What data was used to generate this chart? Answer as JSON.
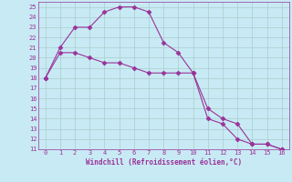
{
  "xlabel": "Windchill (Refroidissement éolien,°C)",
  "line1_x": [
    0,
    1,
    2,
    3,
    4,
    5,
    6,
    7,
    8,
    9,
    10,
    11,
    12,
    13,
    14,
    15,
    16
  ],
  "line1_y": [
    18,
    21,
    23,
    23,
    24.5,
    25,
    25,
    24.5,
    21.5,
    20.5,
    18.5,
    14,
    13.5,
    12,
    11.5,
    11.5,
    11
  ],
  "line2_x": [
    0,
    1,
    2,
    3,
    4,
    5,
    6,
    7,
    8,
    9,
    10,
    11,
    12,
    13,
    14,
    15,
    16
  ],
  "line2_y": [
    18,
    20.5,
    20.5,
    20,
    19.5,
    19.5,
    19,
    18.5,
    18.5,
    18.5,
    18.5,
    15,
    14,
    13.5,
    11.5,
    11.5,
    11
  ],
  "line_color": "#993399",
  "bg_color": "#c8eaf4",
  "grid_color": "#aacccc",
  "ylim": [
    11,
    25.5
  ],
  "xlim": [
    -0.5,
    16.5
  ],
  "yticks": [
    11,
    12,
    13,
    14,
    15,
    16,
    17,
    18,
    19,
    20,
    21,
    22,
    23,
    24,
    25
  ],
  "xticks": [
    0,
    1,
    2,
    3,
    4,
    5,
    6,
    7,
    8,
    9,
    10,
    11,
    12,
    13,
    14,
    15,
    16
  ]
}
